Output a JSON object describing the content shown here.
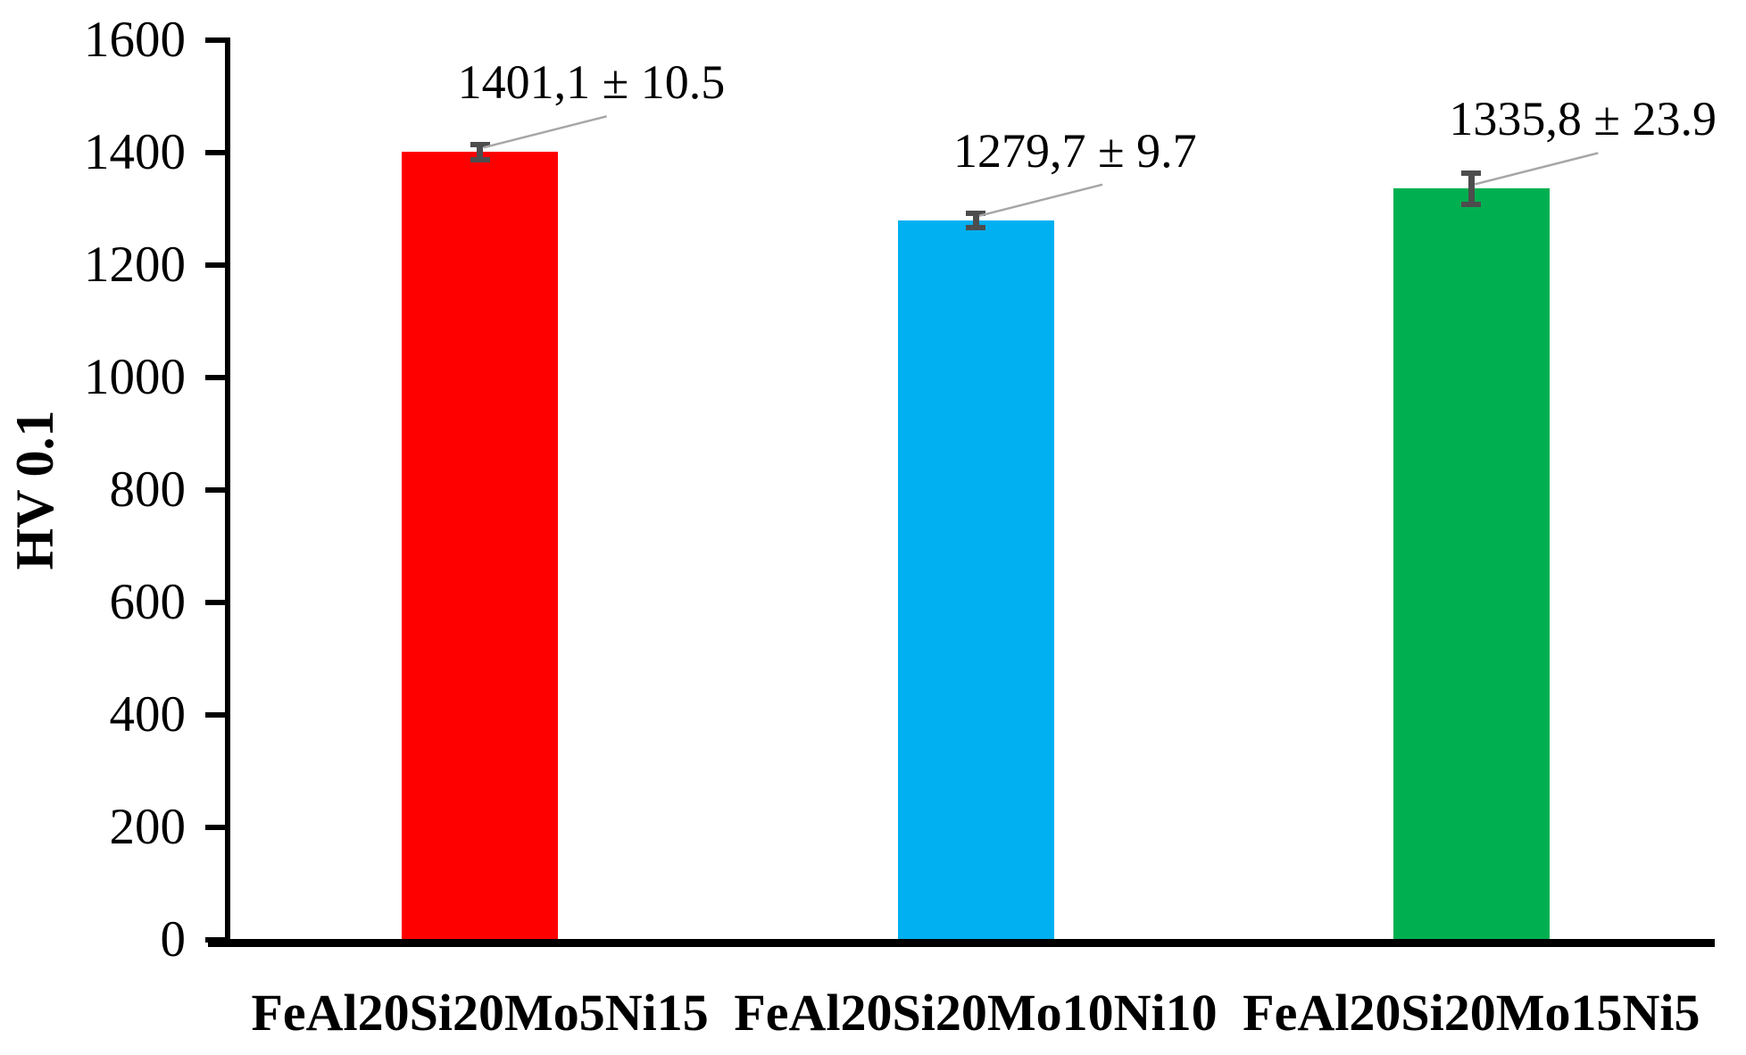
{
  "chart_data": {
    "type": "bar",
    "title": "",
    "xlabel": "",
    "ylabel": "HV 0.1",
    "ylim": [
      0,
      1600
    ],
    "ytick_step": 200,
    "yticks": [
      0,
      200,
      400,
      600,
      800,
      1000,
      1200,
      1400,
      1600
    ],
    "ytick_labels": [
      "0",
      "200",
      "400",
      "600",
      "800",
      "1000",
      "1200",
      "1400",
      "1600"
    ],
    "categories": [
      "FeAl20Si20Mo5Ni15",
      "FeAl20Si20Mo10Ni10",
      "FeAl20Si20Mo15Ni5"
    ],
    "values": [
      1401.1,
      1279.7,
      1335.8
    ],
    "errors": [
      10.5,
      9.7,
      23.9
    ],
    "data_labels": [
      "1401,1 ± 10.5",
      "1279,7 ± 9.7",
      "1335,8 ± 23.9"
    ],
    "bar_colors": [
      "#FF0000",
      "#00B0F0",
      "#00B050"
    ],
    "error_bar_color": "#4D4D4D",
    "leader_line_color": "#A6A6A6",
    "axis_color": "#000000",
    "grid": false,
    "legend": false
  }
}
